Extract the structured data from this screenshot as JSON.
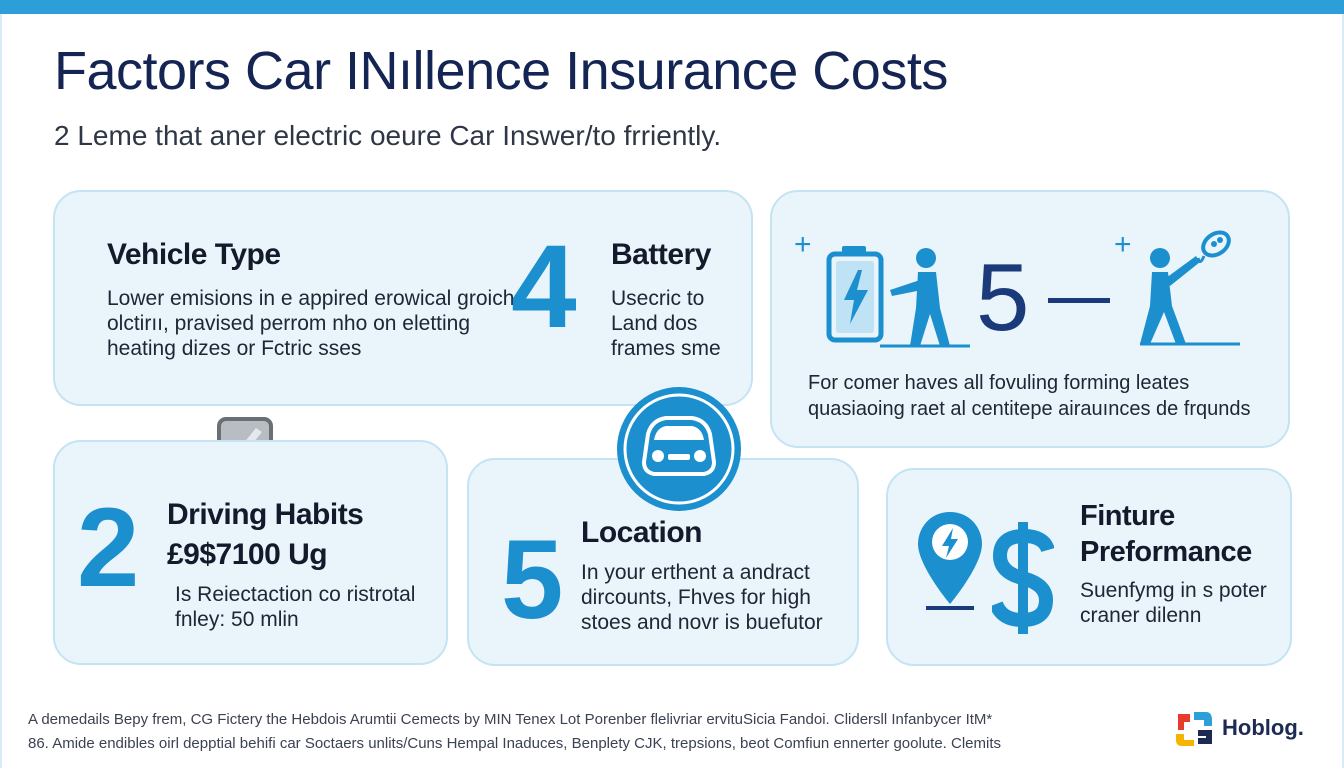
{
  "header": {
    "title": "Factors Car INıllence Insurance Costs",
    "subtitle": "2 Leme that aner electric oeure Car Inswer/to frriently."
  },
  "cards": {
    "vehicle_type": {
      "heading": "Vehicle Type",
      "body": "Lower emisions in e appired erowical groich\nolctirıı, pravised perrom nho on eletting\nheating dizes or Fctric  sses"
    },
    "battery": {
      "number": "4",
      "heading": "Battery",
      "body": "Usecric to\nLand dos\nframes sme"
    },
    "battery_panel": {
      "plus_left": "+",
      "number": "5",
      "plus_right": "+",
      "body": "For comer haves all fovuling forming leates\nquasiaoing raet al centitepe airauınces de frqunds"
    },
    "driving_habits": {
      "number": "2",
      "heading": "Driving Habits",
      "price": "£9$7100 Ug",
      "body": "Is Reiectaction co ristrotal\nfnley: 50 mlin"
    },
    "location": {
      "number": "5",
      "heading": "Location",
      "body": "In your erthent a andract\ndircounts, Fhves for high\nstoes and novr is buefutor"
    },
    "finture": {
      "heading": "Finture\nPreformance",
      "body": "Suenfymg in s poter\ncraner dilenn"
    }
  },
  "footer": {
    "text": "A demedails Bepy frem, CG Fictery the Hebdois Arumtii Cemects by MIN Tenex Lot Porenber flelivriar ervituSicia Fandoi. Clidersll Infanbycer ItM*\n86. Amide endibles oirl depptial behifi car Soctaers unlits/Cuns Hempal Inaduces, Benplety CJK, trepsions, beot Comfiun ennerter goolute. Clemits",
    "brand": "Hoblog."
  },
  "colors": {
    "accent": "#1c8fcf",
    "top_bar": "#2d9fd8",
    "card_bg": "#e9f5fb",
    "title": "#142453"
  }
}
